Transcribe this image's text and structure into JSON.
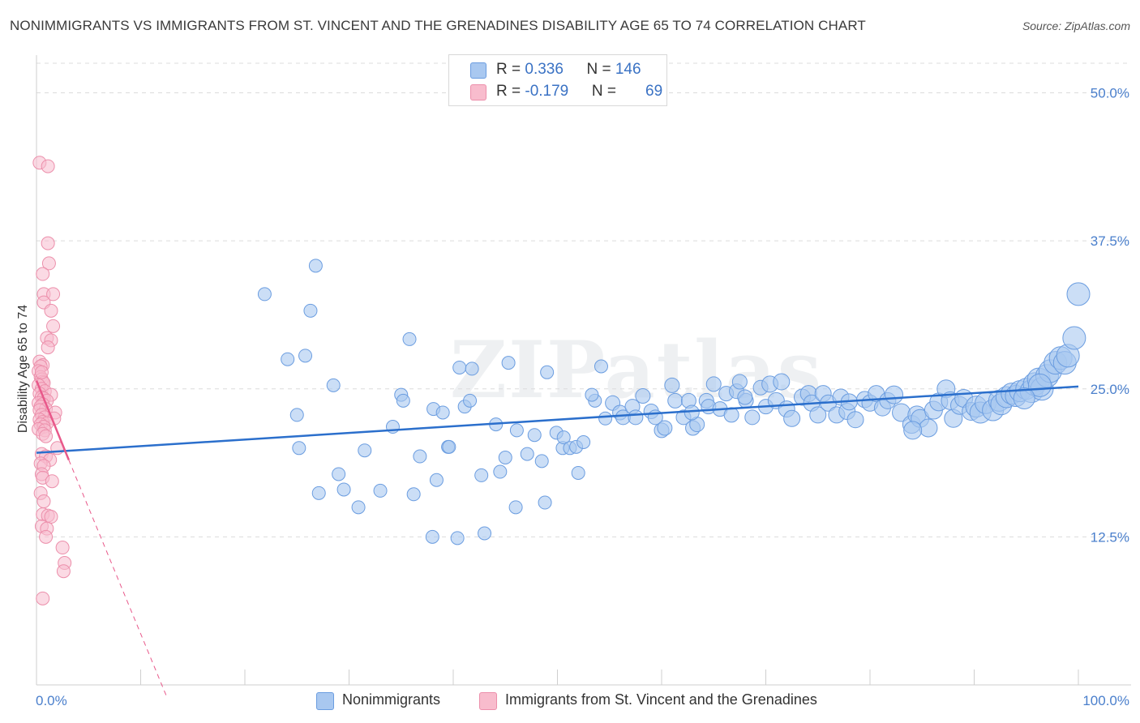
{
  "title": "NONIMMIGRANTS VS IMMIGRANTS FROM ST. VINCENT AND THE GRENADINES DISABILITY AGE 65 TO 74 CORRELATION CHART",
  "source": "Source: ZipAtlas.com",
  "watermark": "ZIPatlas",
  "legend": {
    "row1": {
      "r_label": "R = ",
      "r_value": "0.336",
      "n_label": "N = ",
      "n_value": "146"
    },
    "row2": {
      "r_label": "R = ",
      "r_value": "-0.179",
      "n_label": "N = ",
      "n_value": "69"
    }
  },
  "bottom_legend": {
    "series1": "Nonimmigrants",
    "series2": "Immigrants from St. Vincent and the Grenadines"
  },
  "colors": {
    "blue_fill": "#a9c8f0",
    "blue_stroke": "#6b9de0",
    "blue_line": "#2b6fcc",
    "pink_fill": "#f8bccd",
    "pink_stroke": "#ec8fab",
    "pink_line": "#e8588a",
    "grid": "#dcdcdc",
    "tick_text": "#4a7fcc"
  },
  "chart_data": {
    "type": "scatter",
    "title": "NONIMMIGRANTS VS IMMIGRANTS FROM ST. VINCENT AND THE GRENADINES DISABILITY AGE 65 TO 74 CORRELATION CHART",
    "xlabel": "",
    "ylabel": "Disability Age 65 to 74",
    "xlim": [
      0,
      100
    ],
    "ylim": [
      0,
      52.5
    ],
    "x_tick_labels": [
      "0.0%",
      "100.0%"
    ],
    "y_ticks": [
      12.5,
      25.0,
      37.5,
      50.0
    ],
    "y_tick_labels": [
      "12.5%",
      "25.0%",
      "37.5%",
      "50.0%"
    ],
    "series": [
      {
        "name": "Nonimmigrants",
        "r": 0.336,
        "n": 146,
        "trend": {
          "x0": 0,
          "y0": 19.6,
          "x1": 100,
          "y1": 25.2
        },
        "points": [
          [
            21.9,
            33.0,
            1
          ],
          [
            26.8,
            35.4,
            1
          ],
          [
            26.3,
            31.6,
            1
          ],
          [
            24.1,
            27.5,
            1
          ],
          [
            25.8,
            27.8,
            1
          ],
          [
            28.5,
            25.3,
            1
          ],
          [
            25.0,
            22.8,
            1
          ],
          [
            25.2,
            20.0,
            1
          ],
          [
            27.1,
            16.2,
            1
          ],
          [
            29.0,
            17.8,
            1
          ],
          [
            29.5,
            16.5,
            1
          ],
          [
            30.9,
            15.0,
            1
          ],
          [
            31.5,
            19.8,
            1
          ],
          [
            33.0,
            16.4,
            1
          ],
          [
            34.2,
            21.8,
            1
          ],
          [
            35.0,
            24.5,
            1
          ],
          [
            35.2,
            24.0,
            1
          ],
          [
            35.8,
            29.2,
            1
          ],
          [
            36.2,
            16.1,
            1
          ],
          [
            36.8,
            19.3,
            1
          ],
          [
            38.0,
            12.5,
            1
          ],
          [
            38.1,
            23.3,
            1
          ],
          [
            38.4,
            17.3,
            1
          ],
          [
            39.0,
            23.0,
            1
          ],
          [
            39.5,
            20.1,
            1
          ],
          [
            39.6,
            20.1,
            1
          ],
          [
            40.4,
            12.4,
            1
          ],
          [
            40.6,
            26.8,
            1
          ],
          [
            41.1,
            23.5,
            1
          ],
          [
            41.6,
            24.0,
            1
          ],
          [
            41.8,
            26.7,
            1
          ],
          [
            42.7,
            17.7,
            1
          ],
          [
            43.0,
            12.8,
            1
          ],
          [
            44.1,
            22.0,
            1
          ],
          [
            44.5,
            18.0,
            1
          ],
          [
            45.0,
            19.2,
            1
          ],
          [
            45.3,
            27.2,
            1
          ],
          [
            46.0,
            15.0,
            1
          ],
          [
            46.1,
            21.5,
            1
          ],
          [
            47.1,
            19.5,
            1
          ],
          [
            47.8,
            21.1,
            1
          ],
          [
            48.5,
            18.9,
            1
          ],
          [
            48.8,
            15.4,
            1
          ],
          [
            49.0,
            26.4,
            1
          ],
          [
            49.9,
            21.3,
            1
          ],
          [
            50.5,
            20.0,
            1
          ],
          [
            50.6,
            20.9,
            1
          ],
          [
            51.2,
            20.0,
            1
          ],
          [
            51.8,
            20.1,
            1
          ],
          [
            52.0,
            17.9,
            1
          ],
          [
            52.5,
            20.5,
            1
          ],
          [
            53.6,
            24.0,
            1
          ],
          [
            54.2,
            26.9,
            1
          ],
          [
            54.6,
            22.5,
            1
          ],
          [
            55.3,
            23.8,
            1
          ],
          [
            56.0,
            23.0,
            1
          ],
          [
            56.3,
            22.6,
            1
          ],
          [
            57.2,
            23.5,
            1
          ],
          [
            57.5,
            22.6,
            1
          ],
          [
            58.2,
            24.4,
            1
          ],
          [
            59.0,
            23.1,
            1
          ],
          [
            59.4,
            22.6,
            1
          ],
          [
            60.0,
            21.5,
            1
          ],
          [
            60.3,
            21.7,
            1
          ],
          [
            61.0,
            25.3,
            1
          ],
          [
            61.3,
            24.0,
            1
          ],
          [
            62.1,
            22.6,
            1
          ],
          [
            62.6,
            24.0,
            1
          ],
          [
            63.0,
            21.7,
            1
          ],
          [
            63.4,
            22.0,
            1
          ],
          [
            64.3,
            24.0,
            1
          ],
          [
            64.5,
            23.5,
            1
          ],
          [
            65.0,
            25.4,
            1
          ],
          [
            65.6,
            23.3,
            1
          ],
          [
            66.2,
            24.6,
            1
          ],
          [
            66.7,
            22.8,
            1
          ],
          [
            67.2,
            24.8,
            1
          ],
          [
            67.5,
            25.6,
            1
          ],
          [
            68.1,
            24.0,
            1
          ],
          [
            68.7,
            22.6,
            1
          ],
          [
            69.5,
            25.1,
            1
          ],
          [
            70.0,
            23.5,
            1
          ],
          [
            70.4,
            25.4,
            1
          ],
          [
            71.0,
            24.0,
            1
          ],
          [
            71.5,
            25.6,
            1
          ],
          [
            72.0,
            23.3,
            1
          ],
          [
            72.5,
            22.5,
            1
          ],
          [
            73.5,
            24.3,
            1
          ],
          [
            74.1,
            24.6,
            1
          ],
          [
            74.4,
            23.8,
            1
          ],
          [
            75.0,
            22.8,
            1
          ],
          [
            75.5,
            24.6,
            1
          ],
          [
            76.0,
            23.8,
            1
          ],
          [
            76.8,
            22.8,
            1
          ],
          [
            77.2,
            24.3,
            1
          ],
          [
            77.8,
            23.1,
            1
          ],
          [
            78.0,
            23.9,
            1
          ],
          [
            78.6,
            22.4,
            1
          ],
          [
            79.5,
            24.1,
            1
          ],
          [
            80.0,
            23.8,
            1
          ],
          [
            80.6,
            24.6,
            1
          ],
          [
            81.2,
            23.4,
            1
          ],
          [
            81.7,
            24.0,
            1
          ],
          [
            82.3,
            24.5,
            1
          ],
          [
            83.0,
            23.0,
            1
          ],
          [
            84.0,
            22.0,
            1
          ],
          [
            84.5,
            22.8,
            1
          ],
          [
            84.8,
            22.5,
            1
          ],
          [
            85.6,
            21.7,
            1
          ],
          [
            86.1,
            23.2,
            1
          ],
          [
            86.6,
            23.9,
            1
          ],
          [
            87.3,
            25.0,
            1
          ],
          [
            87.7,
            24.0,
            1
          ],
          [
            88.0,
            22.5,
            1
          ],
          [
            88.6,
            23.6,
            1
          ],
          [
            89.0,
            24.2,
            1
          ],
          [
            89.7,
            23.1,
            1
          ],
          [
            90.2,
            23.5,
            1
          ],
          [
            90.6,
            23.0,
            1
          ],
          [
            91.1,
            23.8,
            1
          ],
          [
            91.8,
            23.2,
            1
          ],
          [
            92.4,
            24.0,
            1
          ],
          [
            92.6,
            23.7,
            1
          ],
          [
            93.1,
            24.3,
            1
          ],
          [
            93.6,
            24.6,
            1
          ],
          [
            94.0,
            24.4,
            1
          ],
          [
            94.4,
            24.8,
            1
          ],
          [
            95.0,
            25.0,
            1
          ],
          [
            95.5,
            24.8,
            1
          ],
          [
            95.8,
            25.4,
            1
          ],
          [
            96.2,
            25.8,
            1
          ],
          [
            96.5,
            25.0,
            1
          ],
          [
            97.0,
            26.1,
            1
          ],
          [
            97.3,
            26.5,
            1
          ],
          [
            97.8,
            27.2,
            1
          ],
          [
            98.3,
            27.6,
            1
          ],
          [
            98.7,
            27.2,
            1
          ],
          [
            99.0,
            27.8,
            1
          ],
          [
            99.6,
            29.3,
            1
          ],
          [
            100.0,
            33.0,
            1
          ],
          [
            96.3,
            25.3,
            1
          ],
          [
            84.1,
            21.5,
            1
          ],
          [
            53.3,
            24.5,
            1
          ],
          [
            68.0,
            24.3,
            1
          ],
          [
            62.9,
            23.0,
            1
          ],
          [
            94.8,
            24.2,
            1
          ]
        ]
      },
      {
        "name": "Immigrants from St. Vincent and the Grenadines",
        "r": -0.179,
        "n": 69,
        "trend": {
          "x0": 0,
          "y0": 25.7,
          "x1": 3.1,
          "y1": 19.0,
          "dash_to_x": 12.5,
          "dash_to_y": -1.0
        },
        "points": [
          [
            0.3,
            44.1
          ],
          [
            1.1,
            43.8
          ],
          [
            1.1,
            37.3
          ],
          [
            1.2,
            35.6
          ],
          [
            0.6,
            34.7
          ],
          [
            0.7,
            33.0
          ],
          [
            1.6,
            33.0
          ],
          [
            0.7,
            32.3
          ],
          [
            1.4,
            31.6
          ],
          [
            1.6,
            30.3
          ],
          [
            1.0,
            29.3
          ],
          [
            1.4,
            29.1
          ],
          [
            1.1,
            28.5
          ],
          [
            0.3,
            27.3
          ],
          [
            0.6,
            27.0
          ],
          [
            0.4,
            26.9
          ],
          [
            0.2,
            26.5
          ],
          [
            0.4,
            26.0
          ],
          [
            0.5,
            25.8
          ],
          [
            0.6,
            25.6
          ],
          [
            0.7,
            25.5
          ],
          [
            0.2,
            25.3
          ],
          [
            0.5,
            25.0
          ],
          [
            0.8,
            24.8
          ],
          [
            0.3,
            24.6
          ],
          [
            1.4,
            24.5
          ],
          [
            0.5,
            24.3
          ],
          [
            0.7,
            24.2
          ],
          [
            1.0,
            24.0
          ],
          [
            0.2,
            23.8
          ],
          [
            0.6,
            23.7
          ],
          [
            0.4,
            23.5
          ],
          [
            0.9,
            23.3
          ],
          [
            0.3,
            23.2
          ],
          [
            1.8,
            23.0
          ],
          [
            0.5,
            22.8
          ],
          [
            0.8,
            22.6
          ],
          [
            1.7,
            22.5
          ],
          [
            0.3,
            22.4
          ],
          [
            0.6,
            22.2
          ],
          [
            1.0,
            22.1
          ],
          [
            0.4,
            22.0
          ],
          [
            0.7,
            21.8
          ],
          [
            0.2,
            21.6
          ],
          [
            0.8,
            21.5
          ],
          [
            0.6,
            21.2
          ],
          [
            0.9,
            21.0
          ],
          [
            2.0,
            20.0
          ],
          [
            0.5,
            19.5
          ],
          [
            0.9,
            19.3
          ],
          [
            1.3,
            19.0
          ],
          [
            0.4,
            18.7
          ],
          [
            0.7,
            18.5
          ],
          [
            0.5,
            17.8
          ],
          [
            0.6,
            17.5
          ],
          [
            1.5,
            17.2
          ],
          [
            0.4,
            16.2
          ],
          [
            0.7,
            15.5
          ],
          [
            0.6,
            14.4
          ],
          [
            1.1,
            14.3
          ],
          [
            1.4,
            14.2
          ],
          [
            0.5,
            13.4
          ],
          [
            1.0,
            13.2
          ],
          [
            0.9,
            12.5
          ],
          [
            2.5,
            11.6
          ],
          [
            2.7,
            10.3
          ],
          [
            2.6,
            9.6
          ],
          [
            0.6,
            7.3
          ],
          [
            0.5,
            26.4
          ]
        ]
      }
    ]
  }
}
